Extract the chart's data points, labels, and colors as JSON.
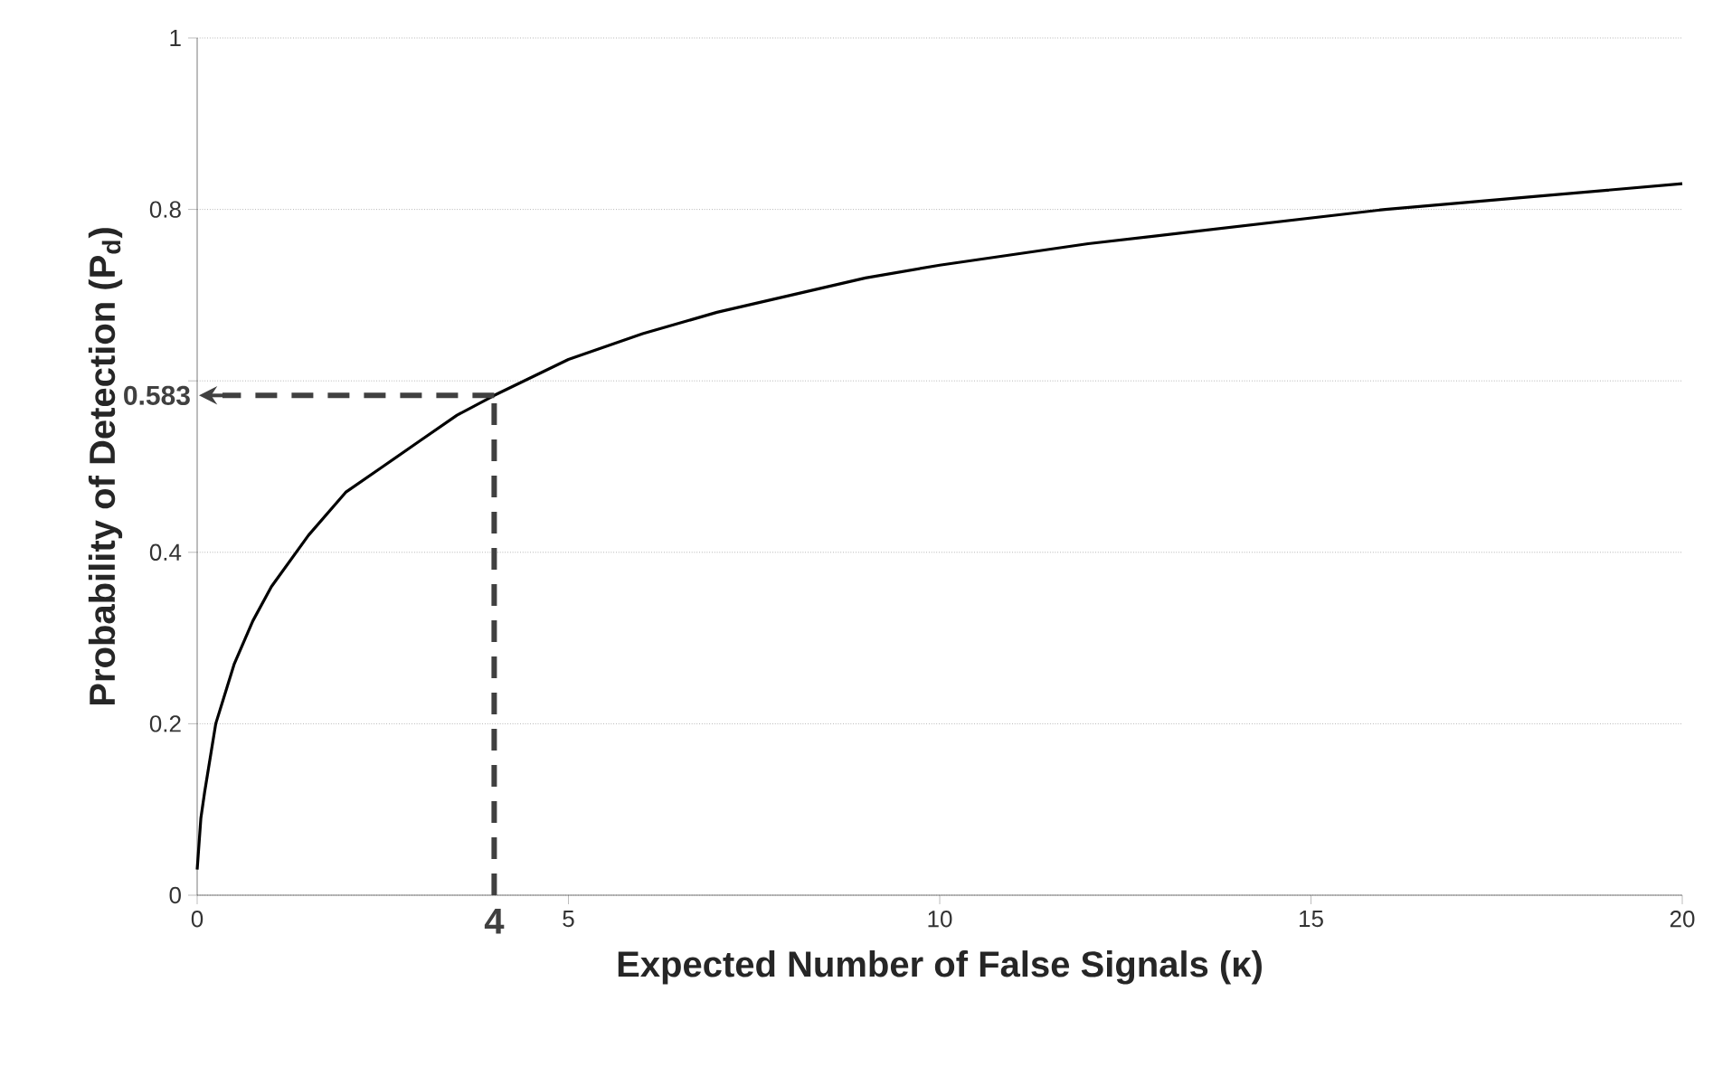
{
  "chart_data": {
    "type": "line",
    "xlabel": "Expected Number of False Signals (κ)",
    "ylabel": "Probability of Detection (P$_{d}$)",
    "series": [
      {
        "color": "#000000",
        "x": [
          0,
          0.05,
          0.1,
          0.25,
          0.5,
          0.75,
          1,
          1.5,
          2,
          2.5,
          3,
          3.5,
          4,
          5,
          6,
          7,
          8,
          9,
          10,
          12,
          14,
          16,
          18,
          20
        ],
        "values": [
          0.03,
          0.09,
          0.12,
          0.2,
          0.27,
          0.32,
          0.36,
          0.42,
          0.47,
          0.5,
          0.53,
          0.56,
          0.583,
          0.625,
          0.655,
          0.68,
          0.7,
          0.72,
          0.735,
          0.76,
          0.78,
          0.8,
          0.815,
          0.83
        ]
      }
    ],
    "xlim": [
      0,
      20
    ],
    "xticks": [
      0,
      5,
      10,
      15,
      20
    ],
    "ylim": [
      0,
      1
    ],
    "yticks": [
      0,
      0.2,
      0.4,
      {
        "value": 0.6,
        "label": null
      },
      0.8,
      1
    ],
    "grid": "y",
    "marker": "none",
    "line_style": "solid",
    "ref_lines": [
      {
        "axis": "x",
        "value": 4,
        "label": "4",
        "color": "#404040",
        "line_style": "dashed"
      },
      {
        "axis": "y",
        "value": 0.583,
        "label": "0.583",
        "color": "#404040",
        "line_style": "dashed"
      }
    ]
  }
}
